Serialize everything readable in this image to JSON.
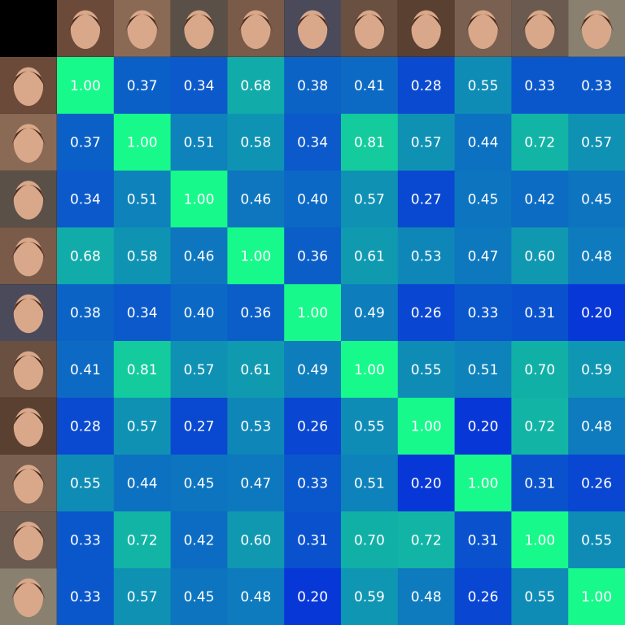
{
  "chart_data": {
    "type": "heatmap",
    "values": [
      [
        1.0,
        0.37,
        0.34,
        0.68,
        0.38,
        0.41,
        0.28,
        0.55,
        0.33,
        0.33
      ],
      [
        0.37,
        1.0,
        0.51,
        0.58,
        0.34,
        0.81,
        0.57,
        0.44,
        0.72,
        0.57
      ],
      [
        0.34,
        0.51,
        1.0,
        0.46,
        0.4,
        0.57,
        0.27,
        0.45,
        0.42,
        0.45
      ],
      [
        0.68,
        0.58,
        0.46,
        1.0,
        0.36,
        0.61,
        0.53,
        0.47,
        0.6,
        0.48
      ],
      [
        0.38,
        0.34,
        0.4,
        0.36,
        1.0,
        0.49,
        0.26,
        0.33,
        0.31,
        0.2
      ],
      [
        0.41,
        0.81,
        0.57,
        0.61,
        0.49,
        1.0,
        0.55,
        0.51,
        0.7,
        0.59
      ],
      [
        0.28,
        0.57,
        0.27,
        0.53,
        0.26,
        0.55,
        1.0,
        0.2,
        0.72,
        0.48
      ],
      [
        0.55,
        0.44,
        0.45,
        0.47,
        0.33,
        0.51,
        0.2,
        1.0,
        0.31,
        0.26
      ],
      [
        0.33,
        0.72,
        0.42,
        0.6,
        0.31,
        0.7,
        0.72,
        0.31,
        1.0,
        0.55
      ],
      [
        0.33,
        0.57,
        0.45,
        0.48,
        0.2,
        0.59,
        0.48,
        0.26,
        0.55,
        1.0
      ]
    ],
    "value_labels": [
      [
        "1.00",
        "0.37",
        "0.34",
        "0.68",
        "0.38",
        "0.41",
        "0.28",
        "0.55",
        "0.33",
        "0.33"
      ],
      [
        "0.37",
        "1.00",
        "0.51",
        "0.58",
        "0.34",
        "0.81",
        "0.57",
        "0.44",
        "0.72",
        "0.57"
      ],
      [
        "0.34",
        "0.51",
        "1.00",
        "0.46",
        "0.40",
        "0.57",
        "0.27",
        "0.45",
        "0.42",
        "0.45"
      ],
      [
        "0.68",
        "0.58",
        "0.46",
        "1.00",
        "0.36",
        "0.61",
        "0.53",
        "0.47",
        "0.60",
        "0.48"
      ],
      [
        "0.38",
        "0.34",
        "0.40",
        "0.36",
        "1.00",
        "0.49",
        "0.26",
        "0.33",
        "0.31",
        "0.20"
      ],
      [
        "0.41",
        "0.81",
        "0.57",
        "0.61",
        "0.49",
        "1.00",
        "0.55",
        "0.51",
        "0.70",
        "0.59"
      ],
      [
        "0.28",
        "0.57",
        "0.27",
        "0.53",
        "0.26",
        "0.55",
        "1.00",
        "0.20",
        "0.72",
        "0.48"
      ],
      [
        "0.55",
        "0.44",
        "0.45",
        "0.47",
        "0.33",
        "0.51",
        "0.20",
        "1.00",
        "0.31",
        "0.26"
      ],
      [
        "0.33",
        "0.72",
        "0.42",
        "0.60",
        "0.31",
        "0.70",
        "0.72",
        "0.31",
        "1.00",
        "0.55"
      ],
      [
        "0.33",
        "0.57",
        "0.45",
        "0.48",
        "0.20",
        "0.59",
        "0.48",
        "0.26",
        "0.55",
        "1.00"
      ]
    ],
    "colorscale": [
      "#0837d8",
      "#17f98a"
    ],
    "vlim": [
      0.2,
      1.0
    ]
  }
}
